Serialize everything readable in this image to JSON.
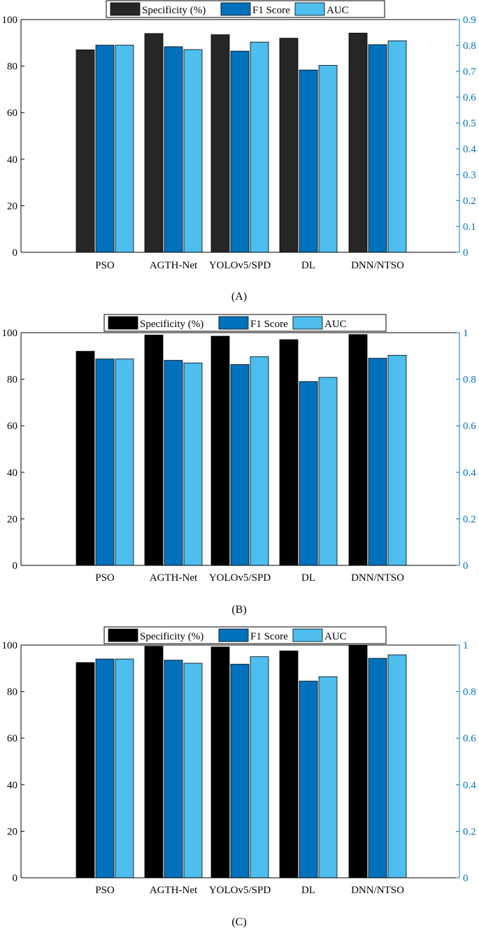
{
  "chart_data": [
    {
      "type": "bar",
      "panel_label": "(A)",
      "categories": [
        "PSO",
        "AGTH-Net",
        "YOLOv5/SPD",
        "DL",
        "DNN/NTSO"
      ],
      "series": [
        {
          "name": "Specificity (%)",
          "axis": "left",
          "color": "#262626",
          "values": [
            87,
            94,
            93.5,
            92,
            94.2
          ]
        },
        {
          "name": "F1 Score",
          "axis": "right",
          "color": "#0072bd",
          "values": [
            0.801,
            0.795,
            0.778,
            0.705,
            0.803
          ]
        },
        {
          "name": "AUC",
          "axis": "right",
          "color": "#4dbeee",
          "values": [
            0.801,
            0.784,
            0.813,
            0.723,
            0.818
          ]
        }
      ],
      "left_axis": {
        "ylim": [
          0,
          100
        ],
        "ticks": [
          "0",
          "20",
          "40",
          "60",
          "80",
          "100"
        ]
      },
      "right_axis": {
        "ylim": [
          0,
          0.9
        ],
        "ticks": [
          "0",
          "0.1",
          "0.2",
          "0.3",
          "0.4",
          "0.5",
          "0.6",
          "0.7",
          "0.8",
          "0.9"
        ],
        "color": "#0072bd"
      },
      "legend": "top-center",
      "grid": false
    },
    {
      "type": "bar",
      "panel_label": "(B)",
      "categories": [
        "PSO",
        "AGTH-Net",
        "YOLOv5/SPD",
        "DL",
        "DNN/NTSO"
      ],
      "series": [
        {
          "name": "Specificity (%)",
          "axis": "left",
          "color": "#000000",
          "values": [
            92,
            99,
            98.5,
            97,
            99.2
          ]
        },
        {
          "name": "F1 Score",
          "axis": "right",
          "color": "#0072bd",
          "values": [
            0.887,
            0.881,
            0.863,
            0.79,
            0.89
          ]
        },
        {
          "name": "AUC",
          "axis": "right",
          "color": "#4dbeee",
          "values": [
            0.887,
            0.87,
            0.897,
            0.808,
            0.903
          ]
        }
      ],
      "left_axis": {
        "ylim": [
          0,
          100
        ],
        "ticks": [
          "0",
          "20",
          "40",
          "60",
          "80",
          "100"
        ]
      },
      "right_axis": {
        "ylim": [
          0,
          1
        ],
        "ticks": [
          "0",
          "0.2",
          "0.4",
          "0.6",
          "0.8",
          "1"
        ],
        "color": "#0072bd"
      },
      "legend": "top-center",
      "grid": false
    },
    {
      "type": "bar",
      "panel_label": "(C)",
      "categories": [
        "PSO",
        "AGTH-Net",
        "YOLOv5/SPD",
        "DL",
        "DNN/NTSO"
      ],
      "series": [
        {
          "name": "Specificity (%)",
          "axis": "left",
          "color": "#000000",
          "values": [
            92.5,
            99.5,
            99.2,
            97.5,
            99.8
          ]
        },
        {
          "name": "F1 Score",
          "axis": "right",
          "color": "#0072bd",
          "values": [
            0.94,
            0.935,
            0.918,
            0.845,
            0.943
          ]
        },
        {
          "name": "AUC",
          "axis": "right",
          "color": "#4dbeee",
          "values": [
            0.94,
            0.922,
            0.95,
            0.864,
            0.958
          ]
        }
      ],
      "left_axis": {
        "ylim": [
          0,
          100
        ],
        "ticks": [
          "0",
          "20",
          "40",
          "60",
          "80",
          "100"
        ]
      },
      "right_axis": {
        "ylim": [
          0,
          1
        ],
        "ticks": [
          "0",
          "0.2",
          "0.4",
          "0.6",
          "0.8",
          "1"
        ],
        "color": "#0072bd"
      },
      "legend": "top-center",
      "grid": false
    }
  ]
}
